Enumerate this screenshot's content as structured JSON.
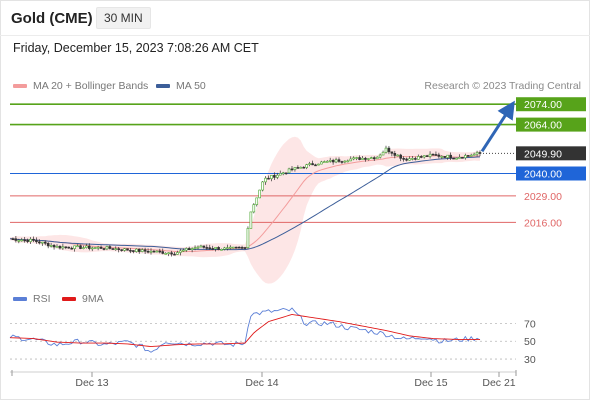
{
  "header": {
    "title": "Gold (CME)",
    "timeframe": "30 MIN",
    "datetime": "Friday, December 15, 2023 7:08:26 AM CET"
  },
  "legend": {
    "ma20_label": "MA 20 + Bollinger Bands",
    "ma50_label": "MA 50",
    "credit": "Research © 2023 Trading Central"
  },
  "rsi_legend": {
    "rsi_label": "RSI",
    "ma_label": "9MA"
  },
  "colors": {
    "green_level": "#57a31a",
    "blue_level": "#1f65d8",
    "red_level": "#e06666",
    "current_price_bg": "#333333",
    "bollinger_fill": "#fde3e3",
    "ma20": "#f39c9c",
    "ma50": "#3c5e99",
    "rsi": "#5b7fd6",
    "rsi_ma": "#e01a1a",
    "arrow": "#2f66b6",
    "candle_up": "#49a52d",
    "candle_down": "#333333"
  },
  "chart_data": [
    {
      "type": "candlestick",
      "title": "Gold (CME)",
      "timeframe": "30 MIN",
      "ylim": [
        2000,
        2080
      ],
      "x_labels": [
        "Dec 13",
        "Dec 14",
        "Dec 15",
        "Dec 21"
      ],
      "current_price": "2049.90",
      "levels": [
        {
          "value": 2074.0,
          "label": "2074.00",
          "kind": "resistance"
        },
        {
          "value": 2064.0,
          "label": "2064.00",
          "kind": "resistance"
        },
        {
          "value": 2040.0,
          "label": "2040.00",
          "kind": "pivot"
        },
        {
          "value": 2029.0,
          "label": "2029.00",
          "kind": "support"
        },
        {
          "value": 2016.0,
          "label": "2016.00",
          "kind": "support"
        }
      ],
      "series": [
        {
          "name": "MA 20 + Bollinger Bands"
        },
        {
          "name": "MA 50"
        }
      ],
      "close_path": [
        [
          0,
          2008
        ],
        [
          0.05,
          2007
        ],
        [
          0.1,
          2004
        ],
        [
          0.2,
          2003.5
        ],
        [
          0.28,
          2002
        ],
        [
          0.35,
          2001
        ],
        [
          0.4,
          2004
        ],
        [
          0.46,
          2003
        ],
        [
          0.5,
          2003.5
        ],
        [
          0.51,
          2020
        ],
        [
          0.54,
          2037
        ],
        [
          0.6,
          2042
        ],
        [
          0.65,
          2045
        ],
        [
          0.72,
          2047
        ],
        [
          0.78,
          2048
        ],
        [
          0.8,
          2052
        ],
        [
          0.84,
          2047
        ],
        [
          0.9,
          2049
        ],
        [
          0.95,
          2048
        ],
        [
          1.0,
          2049.9
        ]
      ],
      "projection_to": 2074.0
    },
    {
      "type": "line",
      "title": "RSI",
      "series": [
        {
          "name": "RSI"
        },
        {
          "name": "9MA"
        }
      ],
      "ylim": [
        20,
        85
      ],
      "y_ticks": [
        70,
        50,
        30
      ],
      "rsi_path": [
        [
          0,
          55
        ],
        [
          0.05,
          52
        ],
        [
          0.1,
          46
        ],
        [
          0.15,
          50
        ],
        [
          0.2,
          46
        ],
        [
          0.25,
          49
        ],
        [
          0.28,
          44
        ],
        [
          0.3,
          38
        ],
        [
          0.33,
          50
        ],
        [
          0.38,
          47
        ],
        [
          0.43,
          48
        ],
        [
          0.47,
          46
        ],
        [
          0.5,
          48
        ],
        [
          0.51,
          80
        ],
        [
          0.55,
          83
        ],
        [
          0.6,
          85
        ],
        [
          0.63,
          70
        ],
        [
          0.68,
          70
        ],
        [
          0.72,
          65
        ],
        [
          0.76,
          62
        ],
        [
          0.8,
          58
        ],
        [
          0.84,
          52
        ],
        [
          0.88,
          55
        ],
        [
          0.92,
          50
        ],
        [
          0.96,
          52
        ],
        [
          1.0,
          54
        ]
      ],
      "ma_path": [
        [
          0,
          54
        ],
        [
          0.05,
          53
        ],
        [
          0.1,
          49
        ],
        [
          0.15,
          48
        ],
        [
          0.2,
          48
        ],
        [
          0.25,
          47
        ],
        [
          0.3,
          44
        ],
        [
          0.35,
          46
        ],
        [
          0.4,
          47
        ],
        [
          0.45,
          47
        ],
        [
          0.5,
          48
        ],
        [
          0.52,
          60
        ],
        [
          0.55,
          72
        ],
        [
          0.6,
          80
        ],
        [
          0.65,
          76
        ],
        [
          0.7,
          72
        ],
        [
          0.75,
          67
        ],
        [
          0.8,
          62
        ],
        [
          0.85,
          56
        ],
        [
          0.9,
          53
        ],
        [
          0.95,
          52
        ],
        [
          1.0,
          52
        ]
      ]
    }
  ]
}
